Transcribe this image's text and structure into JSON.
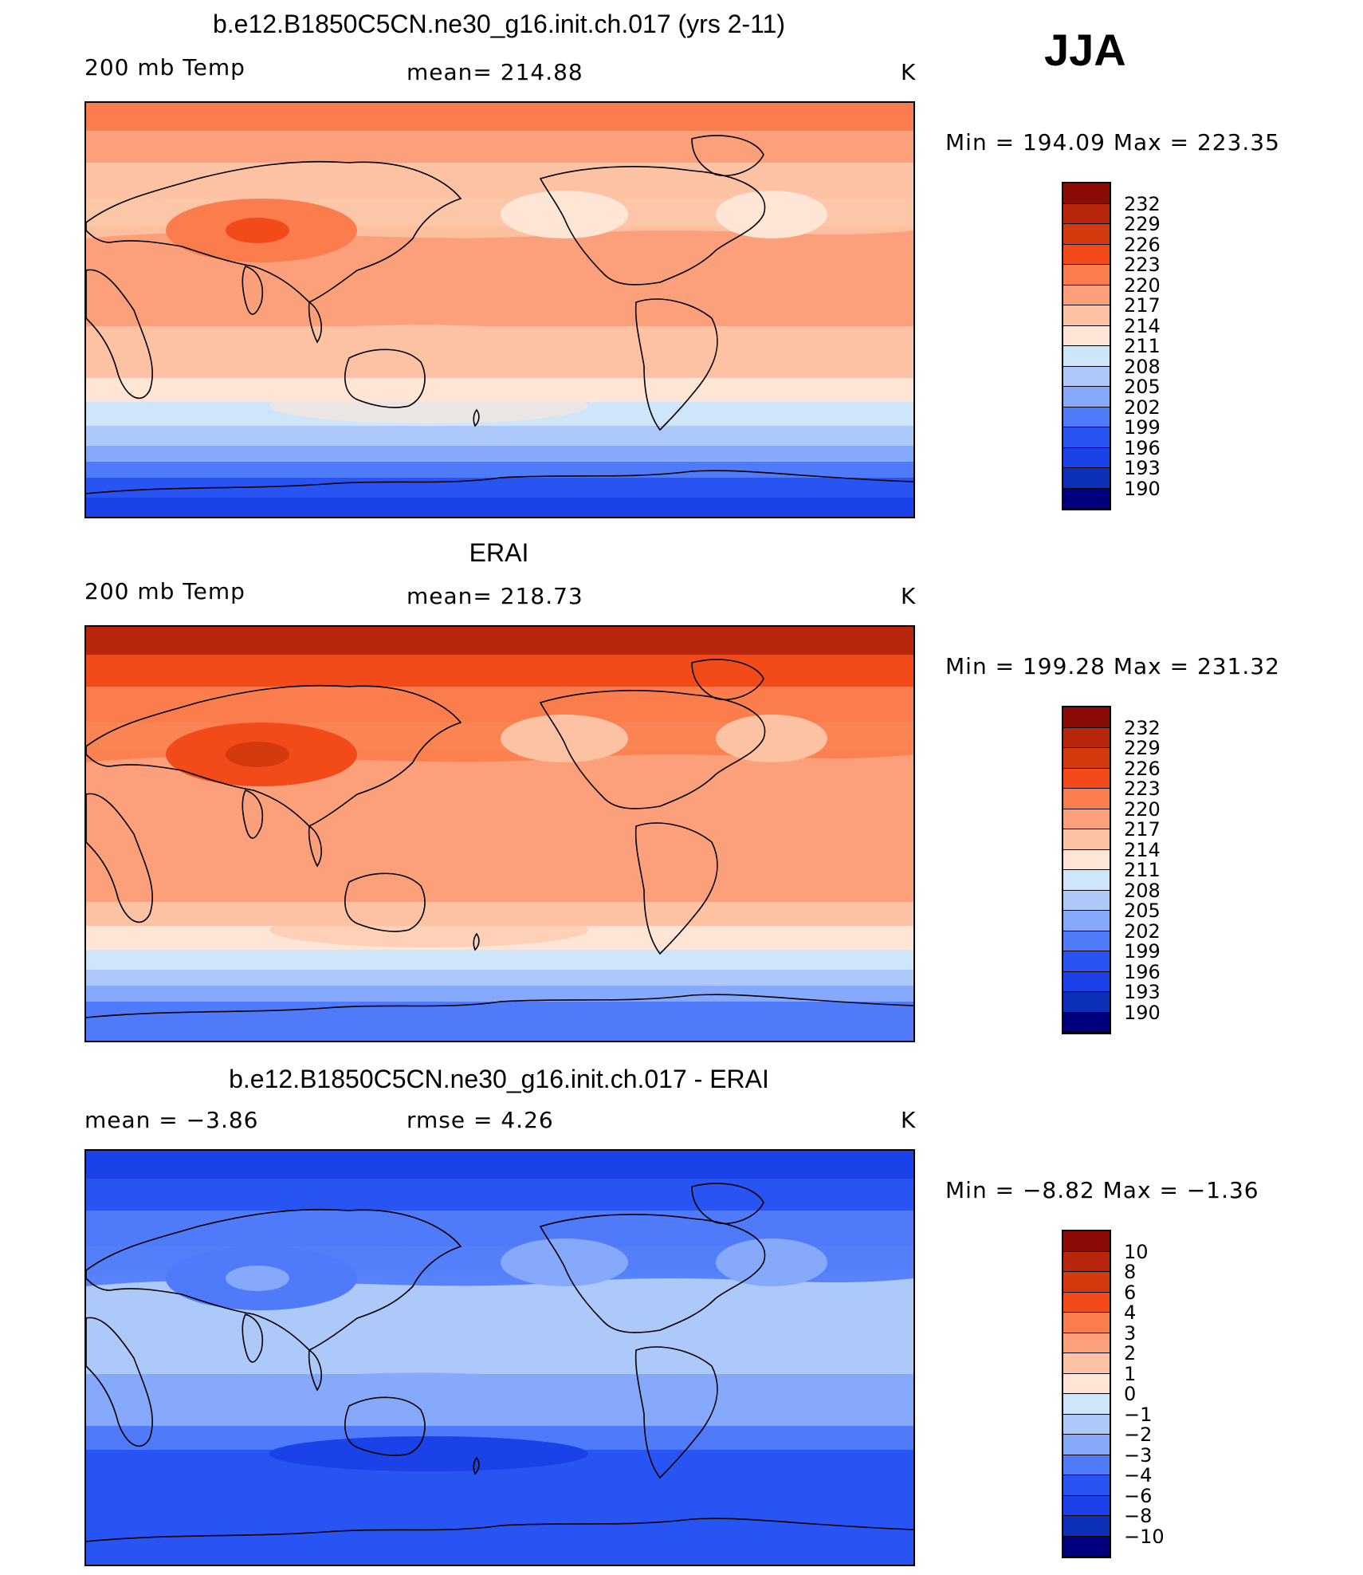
{
  "header": {
    "season": "JJA"
  },
  "panels": [
    {
      "title": "b.e12.B1850C5CN.ne30_g16.init.ch.017 (yrs 2-11)",
      "left_label": "200 mb Temp",
      "center_label": "mean=  214.88",
      "unit": "K",
      "minmax": "Min  =  194.09  Max  =  223.35",
      "colorbar_labels": [
        "232",
        "229",
        "226",
        "223",
        "220",
        "217",
        "214",
        "211",
        "208",
        "205",
        "202",
        "199",
        "196",
        "193",
        "190"
      ],
      "colors": {
        "polar_north": "#fb7d4d",
        "band_a": "#fca07b",
        "band_b": "#fcc2a3",
        "band_c": "#fee5d5",
        "tropics": "#fca07b",
        "s1": "#fcc2a3",
        "s2": "#fee5d5",
        "s3": "#cfe5f9",
        "s4": "#acc9fa",
        "s5": "#86a9fb",
        "s6": "#4f7af9",
        "s7": "#2754f3",
        "s8": "#1a42e8",
        "hot": "#f24a18",
        "warm": "#fb7d4d"
      }
    },
    {
      "title": "ERAI",
      "left_label": "200 mb Temp",
      "center_label": "mean=  218.73",
      "unit": "K",
      "minmax": "Min  =  199.28  Max  =  231.32",
      "colorbar_labels": [
        "232",
        "229",
        "226",
        "223",
        "220",
        "217",
        "214",
        "211",
        "208",
        "205",
        "202",
        "199",
        "196",
        "193",
        "190"
      ],
      "colors": {
        "polar_north": "#b8260c",
        "band_a": "#f24a18",
        "band_b": "#fb7d4d",
        "band_c": "#fcc2a3",
        "tropics": "#fca07b",
        "s1": "#fca07b",
        "s2": "#fcc2a3",
        "s3": "#fee5d5",
        "s4": "#cfe5f9",
        "s5": "#acc9fa",
        "s6": "#86a9fb",
        "s7": "#4f7af9",
        "s8": "#4f7af9",
        "hot": "#d33a0d",
        "warm": "#f24a18"
      }
    },
    {
      "title": "b.e12.B1850C5CN.ne30_g16.init.ch.017 - ERAI",
      "left_label": "mean  =    −3.86",
      "center_label": "rmse  =     4.26",
      "unit": "K",
      "minmax": "Min  =    −8.82  Max  =    −1.36",
      "colorbar_labels": [
        "10",
        "8",
        "6",
        "4",
        "3",
        "2",
        "1",
        "0",
        "−1",
        "−2",
        "−3",
        "−4",
        "−6",
        "−8",
        "−10"
      ],
      "colors": {
        "polar_north": "#1a42e8",
        "band_a": "#2754f3",
        "band_b": "#4f7af9",
        "band_c": "#86a9fb",
        "tropics": "#acc9fa",
        "s1": "#86a9fb",
        "s2": "#4f7af9",
        "s3": "#2754f3",
        "s4": "#2754f3",
        "s5": "#2754f3",
        "s6": "#2754f3",
        "s7": "#2754f3",
        "s8": "#2754f3",
        "hot": "#86a9fb",
        "warm": "#4f7af9"
      }
    }
  ],
  "colorbar_colors": [
    "#8a0a06",
    "#b8260c",
    "#d33a0d",
    "#f24a18",
    "#fb7d4d",
    "#fca07b",
    "#fcc2a3",
    "#fee5d5",
    "#cfe5f9",
    "#acc9fa",
    "#86a9fb",
    "#4f7af9",
    "#2754f3",
    "#1a42e8",
    "#0c2fb8",
    "#00007f"
  ]
}
